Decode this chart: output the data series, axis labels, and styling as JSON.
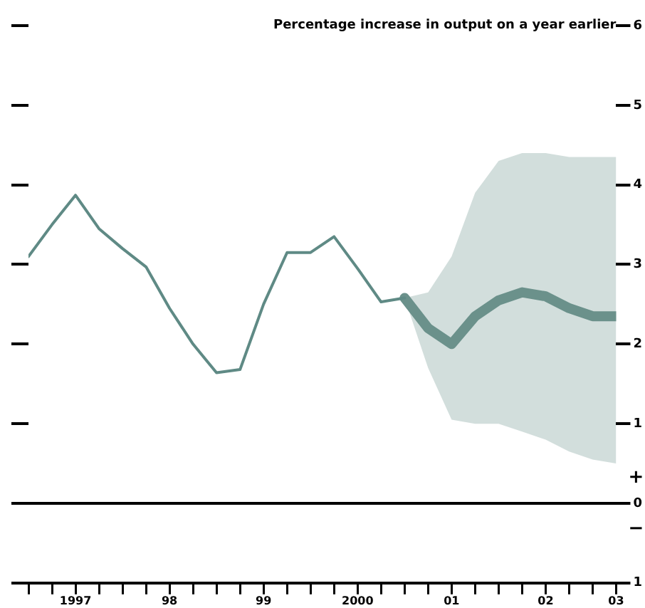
{
  "chart_data": {
    "type": "line",
    "title": "Percentage increase in output on a year earlier",
    "annotations": [
      "+",
      "−"
    ],
    "xlim": [
      "1997-01",
      "2003-04"
    ],
    "xticks": [
      {
        "value": "1997-01",
        "label": null
      },
      {
        "value": "1997-04",
        "label": null
      },
      {
        "value": "1997-07",
        "label": "1997"
      },
      {
        "value": "1997-10",
        "label": null
      },
      {
        "value": "1998-01",
        "label": null
      },
      {
        "value": "1998-04",
        "label": null
      },
      {
        "value": "1998-07",
        "label": "98"
      },
      {
        "value": "1998-10",
        "label": null
      },
      {
        "value": "1999-01",
        "label": null
      },
      {
        "value": "1999-04",
        "label": null
      },
      {
        "value": "1999-07",
        "label": "99"
      },
      {
        "value": "1999-10",
        "label": null
      },
      {
        "value": "2000-01",
        "label": null
      },
      {
        "value": "2000-04",
        "label": null
      },
      {
        "value": "2000-07",
        "label": "2000"
      },
      {
        "value": "2000-10",
        "label": null
      },
      {
        "value": "2001-01",
        "label": null
      },
      {
        "value": "2001-04",
        "label": null
      },
      {
        "value": "2001-07",
        "label": "01"
      },
      {
        "value": "2001-10",
        "label": null
      },
      {
        "value": "2002-01",
        "label": null
      },
      {
        "value": "2002-04",
        "label": null
      },
      {
        "value": "2002-07",
        "label": "02"
      },
      {
        "value": "2002-10",
        "label": null
      },
      {
        "value": "2003-01",
        "label": null
      },
      {
        "value": "2003-04",
        "label": "03"
      }
    ],
    "ylim": [
      -1,
      6
    ],
    "yticks": [
      {
        "value": -1,
        "label": "1"
      },
      0,
      1,
      2,
      3,
      4,
      5,
      6
    ],
    "ref_lines": [
      {
        "axis": "y",
        "value": 0,
        "color": "#000000"
      }
    ],
    "grid": false,
    "legend": false,
    "marker": "none",
    "line_style": "solid",
    "series": [
      {
        "color": "#5f8a85",
        "x": [
          "1997-01",
          "1997-04",
          "1997-07",
          "1997-10",
          "1998-01",
          "1998-04",
          "1998-07",
          "1998-10",
          "1999-01",
          "1999-04",
          "1999-07",
          "1999-10",
          "2000-01",
          "2000-04",
          "2000-07",
          "2000-10",
          "2001-01"
        ],
        "values": [
          3.1,
          3.5,
          3.87,
          3.45,
          3.2,
          2.97,
          2.45,
          2.0,
          1.64,
          1.68,
          2.5,
          3.15,
          3.15,
          3.35,
          2.95,
          2.53,
          2.58
        ]
      },
      {
        "color": "#6b918b",
        "x": [
          "2001-01",
          "2001-04",
          "2001-07",
          "2001-10",
          "2002-01",
          "2002-04",
          "2002-07",
          "2002-10",
          "2003-01",
          "2003-04"
        ],
        "values": [
          2.58,
          2.2,
          2.0,
          2.35,
          2.55,
          2.65,
          2.6,
          2.45,
          2.35,
          2.35
        ],
        "lower": [
          2.58,
          1.7,
          1.05,
          1.0,
          1.0,
          0.9,
          0.8,
          0.65,
          0.55,
          0.5
        ],
        "upper": [
          2.58,
          2.65,
          3.1,
          3.9,
          4.3,
          4.4,
          4.4,
          4.35,
          4.35,
          4.35
        ]
      }
    ]
  }
}
